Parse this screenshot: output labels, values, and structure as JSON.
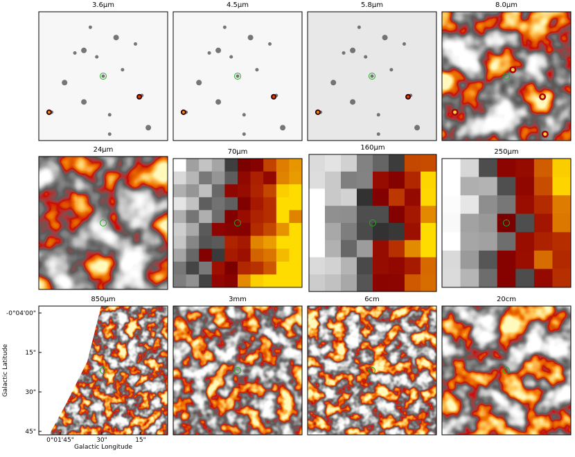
{
  "panels": [
    {
      "title": "3.6μm"
    },
    {
      "title": "4.5μm"
    },
    {
      "title": "5.8μm"
    },
    {
      "title": "8.0μm"
    },
    {
      "title": "24μm"
    },
    {
      "title": "70μm"
    },
    {
      "title": "160μm"
    },
    {
      "title": "250μm"
    },
    {
      "title": "850μm"
    },
    {
      "title": "3mm"
    },
    {
      "title": "6cm"
    },
    {
      "title": "20cm"
    }
  ],
  "axes": {
    "x_label": "Galactic Longitude",
    "y_label": "Galactic Latitude",
    "x_ticks": [
      "0°01'45\"",
      "30\"",
      "15\""
    ],
    "y_ticks": [
      "-0°04'00\"",
      "15\"",
      "30\"",
      "45\""
    ]
  }
}
